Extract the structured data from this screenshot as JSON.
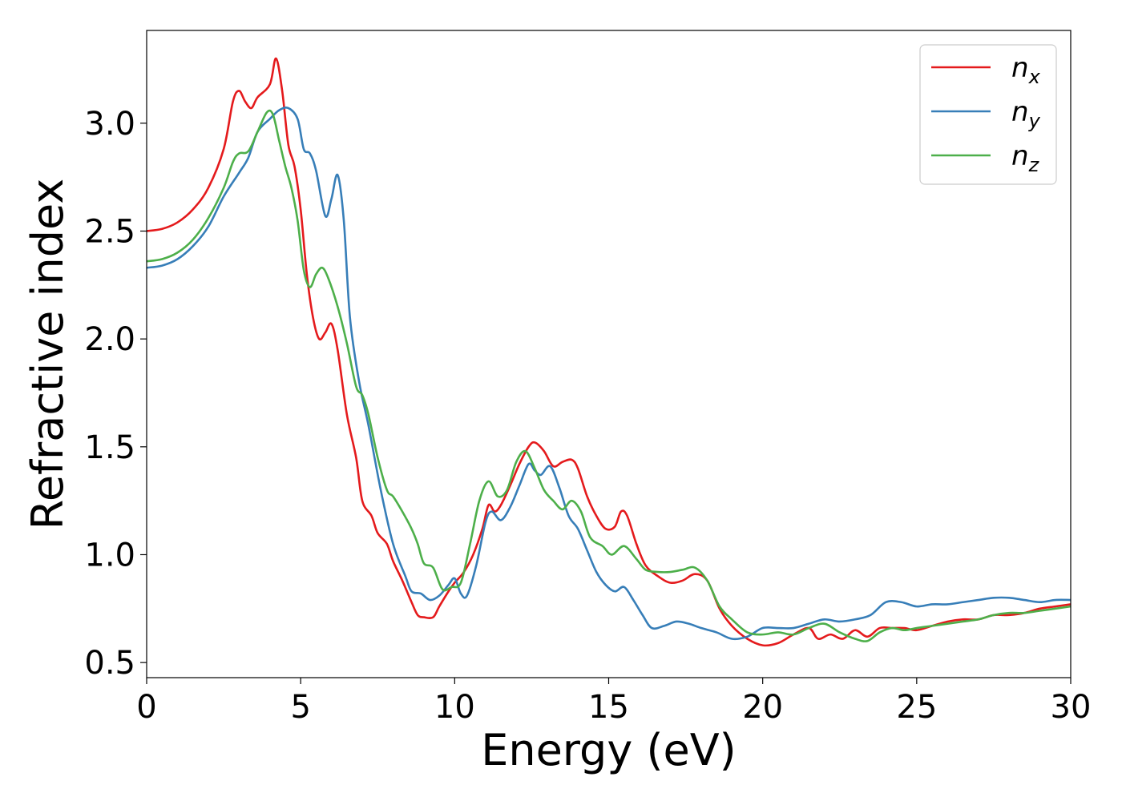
{
  "chart_data": {
    "type": "line",
    "title": "",
    "xlabel": "Energy (eV)",
    "ylabel": "Refractive index",
    "xlim": [
      0,
      30
    ],
    "ylim": [
      0.43,
      3.43
    ],
    "xticks": [
      0,
      5,
      10,
      15,
      20,
      25,
      30
    ],
    "yticks": [
      0.5,
      1.0,
      1.5,
      2.0,
      2.5,
      3.0
    ],
    "xtick_labels": [
      "0",
      "5",
      "10",
      "15",
      "20",
      "25",
      "30"
    ],
    "ytick_labels": [
      "0.5",
      "1.0",
      "1.5",
      "2.0",
      "2.5",
      "3.0"
    ],
    "grid": false,
    "legend_position": "top-right",
    "series": [
      {
        "name": "n_x",
        "legend_base": "n",
        "legend_sub": "x",
        "color": "#e41a1c",
        "points": [
          [
            0,
            2.5
          ],
          [
            0.5,
            2.51
          ],
          [
            1,
            2.54
          ],
          [
            1.5,
            2.6
          ],
          [
            2,
            2.7
          ],
          [
            2.5,
            2.88
          ],
          [
            2.8,
            3.1
          ],
          [
            3.0,
            3.15
          ],
          [
            3.2,
            3.1
          ],
          [
            3.4,
            3.07
          ],
          [
            3.6,
            3.12
          ],
          [
            4.0,
            3.18
          ],
          [
            4.2,
            3.3
          ],
          [
            4.4,
            3.15
          ],
          [
            4.6,
            2.9
          ],
          [
            4.8,
            2.8
          ],
          [
            5.0,
            2.6
          ],
          [
            5.2,
            2.3
          ],
          [
            5.4,
            2.1
          ],
          [
            5.6,
            2.0
          ],
          [
            5.8,
            2.03
          ],
          [
            6.0,
            2.07
          ],
          [
            6.2,
            1.95
          ],
          [
            6.5,
            1.65
          ],
          [
            6.8,
            1.45
          ],
          [
            7.0,
            1.25
          ],
          [
            7.3,
            1.18
          ],
          [
            7.5,
            1.1
          ],
          [
            7.8,
            1.05
          ],
          [
            8.0,
            0.97
          ],
          [
            8.3,
            0.88
          ],
          [
            8.6,
            0.78
          ],
          [
            8.8,
            0.72
          ],
          [
            9.0,
            0.71
          ],
          [
            9.3,
            0.71
          ],
          [
            9.5,
            0.76
          ],
          [
            9.8,
            0.83
          ],
          [
            10.0,
            0.87
          ],
          [
            10.3,
            0.92
          ],
          [
            10.6,
            1.0
          ],
          [
            10.9,
            1.12
          ],
          [
            11.1,
            1.23
          ],
          [
            11.3,
            1.2
          ],
          [
            11.5,
            1.23
          ],
          [
            11.8,
            1.32
          ],
          [
            12.1,
            1.42
          ],
          [
            12.4,
            1.5
          ],
          [
            12.6,
            1.52
          ],
          [
            12.9,
            1.48
          ],
          [
            13.2,
            1.41
          ],
          [
            13.5,
            1.43
          ],
          [
            13.8,
            1.44
          ],
          [
            14.0,
            1.4
          ],
          [
            14.3,
            1.27
          ],
          [
            14.6,
            1.18
          ],
          [
            14.9,
            1.12
          ],
          [
            15.2,
            1.13
          ],
          [
            15.4,
            1.2
          ],
          [
            15.6,
            1.18
          ],
          [
            15.9,
            1.05
          ],
          [
            16.2,
            0.95
          ],
          [
            16.6,
            0.9
          ],
          [
            17.0,
            0.87
          ],
          [
            17.4,
            0.88
          ],
          [
            17.8,
            0.91
          ],
          [
            18.2,
            0.88
          ],
          [
            18.6,
            0.75
          ],
          [
            19.0,
            0.67
          ],
          [
            19.5,
            0.61
          ],
          [
            20.0,
            0.58
          ],
          [
            20.5,
            0.59
          ],
          [
            21.0,
            0.63
          ],
          [
            21.5,
            0.66
          ],
          [
            21.8,
            0.61
          ],
          [
            22.2,
            0.63
          ],
          [
            22.6,
            0.61
          ],
          [
            23.0,
            0.65
          ],
          [
            23.4,
            0.62
          ],
          [
            23.8,
            0.66
          ],
          [
            24.2,
            0.66
          ],
          [
            24.6,
            0.66
          ],
          [
            25.0,
            0.65
          ],
          [
            25.5,
            0.67
          ],
          [
            26.0,
            0.69
          ],
          [
            26.5,
            0.7
          ],
          [
            27.0,
            0.7
          ],
          [
            27.5,
            0.72
          ],
          [
            28.0,
            0.72
          ],
          [
            28.5,
            0.73
          ],
          [
            29.0,
            0.75
          ],
          [
            29.5,
            0.76
          ],
          [
            30.0,
            0.77
          ]
        ]
      },
      {
        "name": "n_y",
        "legend_base": "n",
        "legend_sub": "y",
        "color": "#377eb8",
        "points": [
          [
            0,
            2.33
          ],
          [
            0.5,
            2.34
          ],
          [
            1,
            2.37
          ],
          [
            1.5,
            2.43
          ],
          [
            2,
            2.52
          ],
          [
            2.5,
            2.66
          ],
          [
            3.0,
            2.77
          ],
          [
            3.3,
            2.84
          ],
          [
            3.6,
            2.96
          ],
          [
            4.0,
            3.02
          ],
          [
            4.3,
            3.06
          ],
          [
            4.6,
            3.07
          ],
          [
            4.9,
            3.02
          ],
          [
            5.1,
            2.88
          ],
          [
            5.3,
            2.86
          ],
          [
            5.5,
            2.78
          ],
          [
            5.8,
            2.57
          ],
          [
            6.0,
            2.65
          ],
          [
            6.2,
            2.76
          ],
          [
            6.4,
            2.55
          ],
          [
            6.6,
            2.1
          ],
          [
            6.9,
            1.8
          ],
          [
            7.2,
            1.6
          ],
          [
            7.6,
            1.3
          ],
          [
            8.0,
            1.05
          ],
          [
            8.4,
            0.9
          ],
          [
            8.6,
            0.83
          ],
          [
            8.9,
            0.82
          ],
          [
            9.2,
            0.79
          ],
          [
            9.5,
            0.81
          ],
          [
            9.8,
            0.86
          ],
          [
            10.0,
            0.89
          ],
          [
            10.2,
            0.82
          ],
          [
            10.4,
            0.81
          ],
          [
            10.7,
            0.95
          ],
          [
            11.0,
            1.15
          ],
          [
            11.2,
            1.2
          ],
          [
            11.5,
            1.16
          ],
          [
            11.8,
            1.22
          ],
          [
            12.1,
            1.32
          ],
          [
            12.4,
            1.42
          ],
          [
            12.6,
            1.39
          ],
          [
            12.8,
            1.37
          ],
          [
            13.1,
            1.41
          ],
          [
            13.4,
            1.31
          ],
          [
            13.7,
            1.18
          ],
          [
            14.0,
            1.12
          ],
          [
            14.3,
            1.02
          ],
          [
            14.6,
            0.92
          ],
          [
            14.9,
            0.86
          ],
          [
            15.2,
            0.83
          ],
          [
            15.5,
            0.85
          ],
          [
            15.8,
            0.79
          ],
          [
            16.1,
            0.72
          ],
          [
            16.4,
            0.66
          ],
          [
            16.8,
            0.67
          ],
          [
            17.2,
            0.69
          ],
          [
            17.6,
            0.68
          ],
          [
            18.0,
            0.66
          ],
          [
            18.5,
            0.64
          ],
          [
            19.0,
            0.61
          ],
          [
            19.5,
            0.62
          ],
          [
            20.0,
            0.66
          ],
          [
            20.5,
            0.66
          ],
          [
            21.0,
            0.66
          ],
          [
            21.5,
            0.68
          ],
          [
            22.0,
            0.7
          ],
          [
            22.5,
            0.69
          ],
          [
            23.0,
            0.7
          ],
          [
            23.5,
            0.72
          ],
          [
            24.0,
            0.78
          ],
          [
            24.5,
            0.78
          ],
          [
            25.0,
            0.76
          ],
          [
            25.5,
            0.77
          ],
          [
            26.0,
            0.77
          ],
          [
            26.5,
            0.78
          ],
          [
            27.0,
            0.79
          ],
          [
            27.5,
            0.8
          ],
          [
            28.0,
            0.8
          ],
          [
            28.5,
            0.79
          ],
          [
            29.0,
            0.78
          ],
          [
            29.5,
            0.79
          ],
          [
            30.0,
            0.79
          ]
        ]
      },
      {
        "name": "n_z",
        "legend_base": "n",
        "legend_sub": "z",
        "color": "#4daf4a",
        "points": [
          [
            0,
            2.36
          ],
          [
            0.5,
            2.37
          ],
          [
            1,
            2.4
          ],
          [
            1.5,
            2.46
          ],
          [
            2,
            2.56
          ],
          [
            2.5,
            2.7
          ],
          [
            2.8,
            2.82
          ],
          [
            3.0,
            2.86
          ],
          [
            3.3,
            2.87
          ],
          [
            3.6,
            2.96
          ],
          [
            3.9,
            3.05
          ],
          [
            4.1,
            3.04
          ],
          [
            4.3,
            2.92
          ],
          [
            4.5,
            2.8
          ],
          [
            4.7,
            2.7
          ],
          [
            4.9,
            2.55
          ],
          [
            5.1,
            2.32
          ],
          [
            5.3,
            2.24
          ],
          [
            5.5,
            2.3
          ],
          [
            5.7,
            2.33
          ],
          [
            5.9,
            2.28
          ],
          [
            6.2,
            2.15
          ],
          [
            6.5,
            1.98
          ],
          [
            6.8,
            1.78
          ],
          [
            7.0,
            1.74
          ],
          [
            7.2,
            1.65
          ],
          [
            7.5,
            1.45
          ],
          [
            7.8,
            1.3
          ],
          [
            8.0,
            1.27
          ],
          [
            8.3,
            1.2
          ],
          [
            8.6,
            1.12
          ],
          [
            8.8,
            1.05
          ],
          [
            9.0,
            0.96
          ],
          [
            9.3,
            0.94
          ],
          [
            9.6,
            0.84
          ],
          [
            9.9,
            0.85
          ],
          [
            10.2,
            0.87
          ],
          [
            10.5,
            1.05
          ],
          [
            10.8,
            1.25
          ],
          [
            11.1,
            1.34
          ],
          [
            11.4,
            1.27
          ],
          [
            11.7,
            1.3
          ],
          [
            12.0,
            1.43
          ],
          [
            12.3,
            1.48
          ],
          [
            12.6,
            1.4
          ],
          [
            12.9,
            1.3
          ],
          [
            13.2,
            1.25
          ],
          [
            13.5,
            1.21
          ],
          [
            13.8,
            1.25
          ],
          [
            14.1,
            1.2
          ],
          [
            14.4,
            1.08
          ],
          [
            14.8,
            1.04
          ],
          [
            15.1,
            1.0
          ],
          [
            15.5,
            1.04
          ],
          [
            15.9,
            0.98
          ],
          [
            16.2,
            0.93
          ],
          [
            16.6,
            0.92
          ],
          [
            17.0,
            0.92
          ],
          [
            17.4,
            0.93
          ],
          [
            17.8,
            0.94
          ],
          [
            18.2,
            0.88
          ],
          [
            18.6,
            0.76
          ],
          [
            19.0,
            0.7
          ],
          [
            19.5,
            0.64
          ],
          [
            20.0,
            0.63
          ],
          [
            20.5,
            0.64
          ],
          [
            21.0,
            0.63
          ],
          [
            21.5,
            0.66
          ],
          [
            22.0,
            0.68
          ],
          [
            22.5,
            0.64
          ],
          [
            23.0,
            0.61
          ],
          [
            23.4,
            0.6
          ],
          [
            23.8,
            0.64
          ],
          [
            24.2,
            0.66
          ],
          [
            24.6,
            0.65
          ],
          [
            25.0,
            0.66
          ],
          [
            25.5,
            0.67
          ],
          [
            26.0,
            0.68
          ],
          [
            26.5,
            0.69
          ],
          [
            27.0,
            0.7
          ],
          [
            27.5,
            0.72
          ],
          [
            28.0,
            0.73
          ],
          [
            28.5,
            0.73
          ],
          [
            29.0,
            0.74
          ],
          [
            29.5,
            0.75
          ],
          [
            30.0,
            0.76
          ]
        ]
      }
    ]
  }
}
